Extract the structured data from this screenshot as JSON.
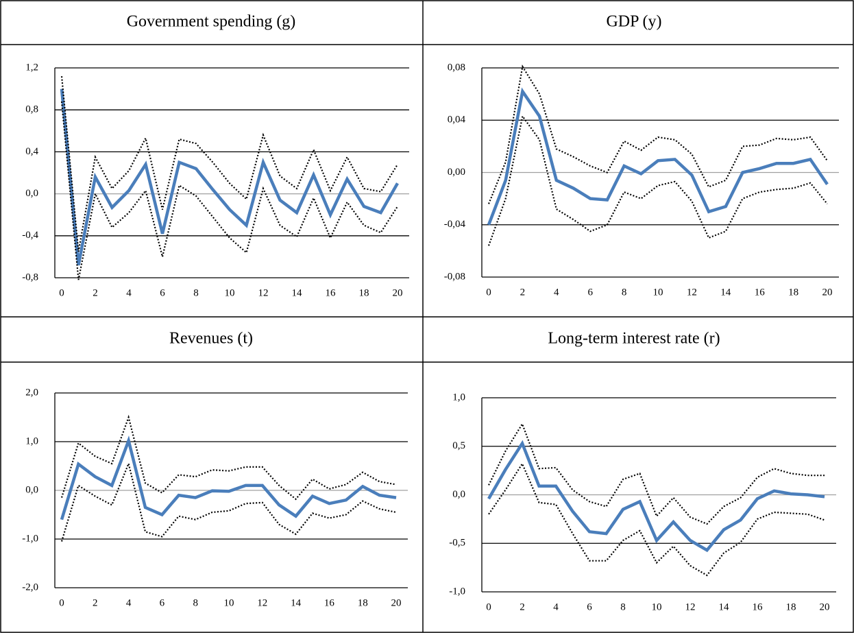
{
  "chart_data": [
    {
      "type": "line",
      "title": "Government spending (g)",
      "x": [
        0,
        1,
        2,
        3,
        4,
        5,
        6,
        7,
        8,
        9,
        10,
        11,
        12,
        13,
        14,
        15,
        16,
        17,
        18,
        19,
        20
      ],
      "xlim": [
        0,
        20
      ],
      "xticks": [
        0,
        2,
        4,
        6,
        8,
        10,
        12,
        14,
        16,
        18,
        20
      ],
      "ylim": [
        -0.8,
        1.2
      ],
      "yticks": [
        {
          "value": -0.8,
          "label": "-0,8"
        },
        {
          "value": -0.4,
          "label": "-0,4"
        },
        {
          "value": 0,
          "label": "0,0"
        },
        {
          "value": 0.4,
          "label": "0,4"
        },
        {
          "value": 0.8,
          "label": "0,8"
        },
        {
          "value": 1.2,
          "label": "1,2"
        }
      ],
      "grid": true,
      "series": [
        {
          "color": "#4a7ebb",
          "dash": "solid",
          "values": [
            1.0,
            -0.68,
            0.16,
            -0.13,
            0.03,
            0.28,
            -0.38,
            0.3,
            0.24,
            0.04,
            -0.15,
            -0.3,
            0.3,
            -0.06,
            -0.18,
            0.18,
            -0.2,
            0.14,
            -0.12,
            -0.18,
            0.1
          ]
        },
        {
          "color": "#000000",
          "dash": "dotted",
          "values": [
            1.12,
            -0.55,
            0.35,
            0.05,
            0.22,
            0.53,
            -0.15,
            0.52,
            0.48,
            0.3,
            0.1,
            -0.05,
            0.56,
            0.17,
            0.05,
            0.42,
            0.03,
            0.35,
            0.05,
            0.02,
            0.28
          ]
        },
        {
          "color": "#000000",
          "dash": "dotted",
          "values": [
            0.88,
            -0.82,
            0.0,
            -0.32,
            -0.18,
            0.03,
            -0.6,
            0.08,
            -0.02,
            -0.22,
            -0.42,
            -0.56,
            0.05,
            -0.3,
            -0.41,
            -0.04,
            -0.42,
            -0.08,
            -0.3,
            -0.37,
            -0.12
          ]
        }
      ]
    },
    {
      "type": "line",
      "title": "GDP (y)",
      "x": [
        0,
        1,
        2,
        3,
        4,
        5,
        6,
        7,
        8,
        9,
        10,
        11,
        12,
        13,
        14,
        15,
        16,
        17,
        18,
        19,
        20
      ],
      "xlim": [
        0,
        20
      ],
      "xticks": [
        0,
        2,
        4,
        6,
        8,
        10,
        12,
        14,
        16,
        18,
        20
      ],
      "ylim": [
        -0.08,
        0.08
      ],
      "yticks": [
        {
          "value": -0.08,
          "label": "-0,08"
        },
        {
          "value": -0.04,
          "label": "-0,04"
        },
        {
          "value": 0,
          "label": "0,00"
        },
        {
          "value": 0.04,
          "label": "0,04"
        },
        {
          "value": 0.08,
          "label": "0,08"
        }
      ],
      "grid": true,
      "series": [
        {
          "color": "#4a7ebb",
          "dash": "solid",
          "values": [
            -0.04,
            -0.006,
            0.062,
            0.043,
            -0.006,
            -0.012,
            -0.02,
            -0.021,
            0.005,
            -0.001,
            0.009,
            0.01,
            -0.002,
            -0.03,
            -0.026,
            0.0,
            0.003,
            0.007,
            0.007,
            0.01,
            -0.009
          ]
        },
        {
          "color": "#000000",
          "dash": "dotted",
          "values": [
            -0.024,
            0.008,
            0.081,
            0.06,
            0.018,
            0.012,
            0.005,
            0.0,
            0.024,
            0.017,
            0.027,
            0.025,
            0.014,
            -0.011,
            -0.006,
            0.02,
            0.021,
            0.026,
            0.025,
            0.027,
            0.009
          ]
        },
        {
          "color": "#000000",
          "dash": "dotted",
          "values": [
            -0.056,
            -0.02,
            0.043,
            0.025,
            -0.028,
            -0.036,
            -0.045,
            -0.04,
            -0.015,
            -0.02,
            -0.01,
            -0.007,
            -0.022,
            -0.05,
            -0.045,
            -0.02,
            -0.015,
            -0.013,
            -0.012,
            -0.008,
            -0.024
          ]
        }
      ]
    },
    {
      "type": "line",
      "title": "Revenues (t)",
      "x": [
        0,
        1,
        2,
        3,
        4,
        5,
        6,
        7,
        8,
        9,
        10,
        11,
        12,
        13,
        14,
        15,
        16,
        17,
        18,
        19,
        20
      ],
      "xlim": [
        0,
        20
      ],
      "xticks": [
        0,
        2,
        4,
        6,
        8,
        10,
        12,
        14,
        16,
        18,
        20
      ],
      "ylim": [
        -2,
        2
      ],
      "yticks": [
        {
          "value": -2,
          "label": "-2,0"
        },
        {
          "value": -1,
          "label": "-1,0"
        },
        {
          "value": 0,
          "label": "0,0"
        },
        {
          "value": 1,
          "label": "1,0"
        },
        {
          "value": 2,
          "label": "2,0"
        }
      ],
      "grid": true,
      "series": [
        {
          "color": "#4a7ebb",
          "dash": "solid",
          "values": [
            -0.6,
            0.54,
            0.28,
            0.1,
            1.02,
            -0.35,
            -0.5,
            -0.1,
            -0.15,
            -0.01,
            -0.02,
            0.1,
            0.1,
            -0.3,
            -0.53,
            -0.12,
            -0.27,
            -0.2,
            0.08,
            -0.1,
            -0.15
          ]
        },
        {
          "color": "#000000",
          "dash": "dotted",
          "values": [
            -0.15,
            0.97,
            0.7,
            0.55,
            1.5,
            0.15,
            -0.05,
            0.32,
            0.28,
            0.42,
            0.4,
            0.48,
            0.48,
            0.1,
            -0.18,
            0.23,
            0.03,
            0.12,
            0.37,
            0.18,
            0.12
          ]
        },
        {
          "color": "#000000",
          "dash": "dotted",
          "values": [
            -1.05,
            0.1,
            -0.12,
            -0.3,
            0.55,
            -0.85,
            -0.95,
            -0.53,
            -0.6,
            -0.45,
            -0.42,
            -0.27,
            -0.25,
            -0.7,
            -0.9,
            -0.47,
            -0.57,
            -0.5,
            -0.22,
            -0.38,
            -0.45
          ]
        }
      ]
    },
    {
      "type": "line",
      "title": "Long-term interest rate (r)",
      "x": [
        0,
        1,
        2,
        3,
        4,
        5,
        6,
        7,
        8,
        9,
        10,
        11,
        12,
        13,
        14,
        15,
        16,
        17,
        18,
        19,
        20
      ],
      "xlim": [
        0,
        20
      ],
      "xticks": [
        0,
        2,
        4,
        6,
        8,
        10,
        12,
        14,
        16,
        18,
        20
      ],
      "ylim": [
        -1,
        1
      ],
      "yticks": [
        {
          "value": -1,
          "label": "-1,0"
        },
        {
          "value": -0.5,
          "label": "-0,5"
        },
        {
          "value": 0,
          "label": "0,0"
        },
        {
          "value": 0.5,
          "label": "0,5"
        },
        {
          "value": 1,
          "label": "1,0"
        }
      ],
      "grid": true,
      "series": [
        {
          "color": "#4a7ebb",
          "dash": "solid",
          "values": [
            -0.04,
            0.26,
            0.53,
            0.09,
            0.09,
            -0.17,
            -0.38,
            -0.4,
            -0.15,
            -0.07,
            -0.47,
            -0.28,
            -0.47,
            -0.57,
            -0.36,
            -0.26,
            -0.04,
            0.04,
            0.01,
            0.0,
            -0.02
          ]
        },
        {
          "color": "#000000",
          "dash": "dotted",
          "values": [
            0.1,
            0.45,
            0.73,
            0.27,
            0.28,
            0.05,
            -0.07,
            -0.12,
            0.16,
            0.22,
            -0.22,
            -0.03,
            -0.23,
            -0.3,
            -0.12,
            -0.03,
            0.18,
            0.27,
            0.22,
            0.2,
            0.2
          ]
        },
        {
          "color": "#000000",
          "dash": "dotted",
          "values": [
            -0.2,
            0.05,
            0.32,
            -0.08,
            -0.1,
            -0.4,
            -0.68,
            -0.68,
            -0.47,
            -0.37,
            -0.7,
            -0.53,
            -0.73,
            -0.83,
            -0.6,
            -0.49,
            -0.25,
            -0.18,
            -0.19,
            -0.2,
            -0.26
          ]
        }
      ]
    }
  ]
}
